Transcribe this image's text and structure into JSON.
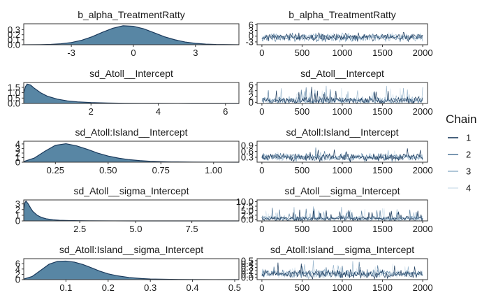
{
  "chart_data": {
    "type": "line",
    "legend": {
      "title": "Chain",
      "placement": "right",
      "entries": [
        {
          "name": "1",
          "color": "#1b3a5c"
        },
        {
          "name": "2",
          "color": "#5a7f9f"
        },
        {
          "name": "3",
          "color": "#9db9cf"
        },
        {
          "name": "4",
          "color": "#d7e5ef"
        }
      ]
    },
    "density_fill": "#4f7f9f",
    "density_line": "#1b3a5c",
    "panels": [
      {
        "title": "b_alpha_TreatmentRatty",
        "density": {
          "xlim": [
            -5.3,
            5.1
          ],
          "ylim": [
            0,
            0.42
          ],
          "xticks": [
            -3,
            0,
            3
          ],
          "yticks": [
            0.0,
            0.1,
            0.2,
            0.3
          ],
          "x": [
            -5.3,
            -4.5,
            -4,
            -3.5,
            -3,
            -2.5,
            -2,
            -1.5,
            -1,
            -0.5,
            0,
            0.5,
            1,
            1.5,
            2,
            2.5,
            3,
            3.5,
            4,
            5.1
          ],
          "y": [
            0.001,
            0.003,
            0.008,
            0.02,
            0.045,
            0.09,
            0.16,
            0.25,
            0.33,
            0.38,
            0.37,
            0.32,
            0.24,
            0.16,
            0.1,
            0.055,
            0.028,
            0.012,
            0.005,
            0.001
          ]
        },
        "trace": {
          "xlim": [
            -60,
            2060
          ],
          "ylim": [
            -4.5,
            6.5
          ],
          "xticks": [
            0,
            500,
            1000,
            1500,
            2000
          ],
          "yticks": [
            -3,
            0,
            3,
            6
          ],
          "center": -0.6,
          "spread": 1.25,
          "skew": 0,
          "seed": 11
        }
      },
      {
        "title": "sd_Atoll__Intercept",
        "density": {
          "xlim": [
            0,
            6.4
          ],
          "ylim": [
            0,
            1.95
          ],
          "xticks": [
            2,
            4,
            6
          ],
          "yticks": [
            0.0,
            0.5,
            1.0,
            1.5
          ],
          "x": [
            0,
            0.05,
            0.1,
            0.2,
            0.3,
            0.5,
            0.7,
            1,
            1.3,
            1.6,
            2,
            2.5,
            3,
            3.5,
            4,
            5,
            6.4
          ],
          "y": [
            1.0,
            1.55,
            1.8,
            1.72,
            1.45,
            1.0,
            0.68,
            0.4,
            0.24,
            0.15,
            0.08,
            0.04,
            0.02,
            0.01,
            0.006,
            0.002,
            0.001
          ]
        },
        "trace": {
          "xlim": [
            -60,
            2060
          ],
          "ylim": [
            -0.4,
            6.8
          ],
          "xticks": [
            0,
            500,
            1000,
            1500,
            2000
          ],
          "yticks": [
            0,
            2,
            4,
            6
          ],
          "center": 0.6,
          "spread": 0.7,
          "skew": 1,
          "seed": 23
        }
      },
      {
        "title": "sd_Atoll:Island__Intercept",
        "density": {
          "xlim": [
            0.1,
            1.12
          ],
          "ylim": [
            0,
            4.6
          ],
          "xticks": [
            0.25,
            0.5,
            0.75,
            1.0
          ],
          "yticks": [
            0,
            1,
            2,
            3,
            4
          ],
          "x": [
            0.1,
            0.15,
            0.2,
            0.25,
            0.3,
            0.35,
            0.4,
            0.45,
            0.5,
            0.55,
            0.6,
            0.65,
            0.7,
            0.75,
            0.8,
            0.9,
            1.0,
            1.12
          ],
          "y": [
            0.15,
            0.9,
            2.4,
            3.7,
            4.05,
            3.6,
            2.85,
            2.0,
            1.35,
            0.88,
            0.55,
            0.34,
            0.2,
            0.12,
            0.07,
            0.025,
            0.01,
            0.003
          ]
        },
        "trace": {
          "xlim": [
            -60,
            2060
          ],
          "ylim": [
            0.05,
            1.12
          ],
          "xticks": [
            0,
            500,
            1000,
            1500,
            2000
          ],
          "yticks": [
            0.3,
            0.6,
            0.9
          ],
          "center": 0.3,
          "spread": 0.11,
          "skew": 0.5,
          "seed": 37
        }
      },
      {
        "title": "sd_Atoll__sigma_Intercept",
        "density": {
          "xlim": [
            0,
            9.6
          ],
          "ylim": [
            0,
            3.7
          ],
          "xticks": [
            2.5,
            5.0,
            7.5
          ],
          "yticks": [
            0,
            1,
            2,
            3
          ],
          "x": [
            0,
            0.05,
            0.1,
            0.2,
            0.3,
            0.4,
            0.6,
            0.8,
            1,
            1.3,
            1.6,
            2,
            2.5,
            3,
            4,
            5,
            6,
            9.6
          ],
          "y": [
            2.0,
            3.2,
            3.5,
            3.0,
            2.3,
            1.7,
            1.0,
            0.6,
            0.38,
            0.2,
            0.11,
            0.06,
            0.03,
            0.015,
            0.006,
            0.003,
            0.001,
            0.0
          ]
        },
        "trace": {
          "xlim": [
            -60,
            2060
          ],
          "ylim": [
            -0.7,
            11
          ],
          "xticks": [
            0,
            500,
            1000,
            1500,
            2000
          ],
          "yticks": [
            0.0,
            2.5,
            5.0,
            7.5,
            10.0
          ],
          "center": 0.6,
          "spread": 0.8,
          "skew": 1,
          "seed": 53
        }
      },
      {
        "title": "sd_Atoll:Island__sigma_Intercept",
        "density": {
          "xlim": [
            0,
            0.51
          ],
          "ylim": [
            0,
            7.9
          ],
          "xticks": [
            0.1,
            0.2,
            0.3,
            0.4,
            0.5
          ],
          "yticks": [
            0,
            2,
            4,
            6
          ],
          "x": [
            0,
            0.02,
            0.04,
            0.06,
            0.08,
            0.1,
            0.12,
            0.14,
            0.16,
            0.18,
            0.2,
            0.22,
            0.25,
            0.28,
            0.3,
            0.35,
            0.4,
            0.45,
            0.51
          ],
          "y": [
            0.2,
            1.2,
            3.5,
            5.8,
            6.9,
            7.0,
            6.6,
            5.7,
            4.5,
            3.2,
            2.2,
            1.5,
            0.8,
            0.4,
            0.25,
            0.1,
            0.04,
            0.015,
            0.005
          ]
        },
        "trace": {
          "xlim": [
            -60,
            2060
          ],
          "ylim": [
            -0.06,
            0.56
          ],
          "xticks": [
            0,
            500,
            1000,
            1500,
            2000
          ],
          "yticks": [
            0.0,
            0.1,
            0.2,
            0.3,
            0.4,
            0.5
          ],
          "center": 0.11,
          "spread": 0.07,
          "skew": 0.6,
          "seed": 71
        }
      }
    ]
  }
}
